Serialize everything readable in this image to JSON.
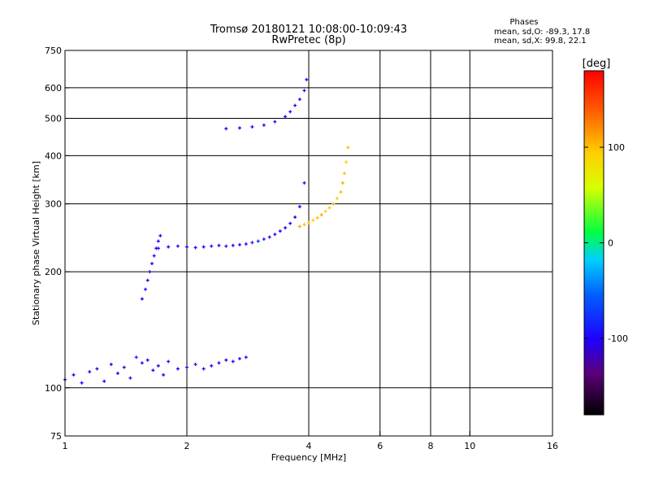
{
  "chart_data": {
    "type": "scatter",
    "title": "Tromsø 20180121 10:08:00-10:09:43",
    "subtitle": "RwPretec (8p)",
    "stats": {
      "heading": "Phases",
      "line1": "mean, sd,O: -89.3, 17.8",
      "line2": "mean, sd,X:  99.8, 22.1"
    },
    "xlabel": "Frequency [MHz]",
    "ylabel": "Stationary phase Virtual Height [km]",
    "xscale": "log",
    "yscale": "log",
    "xlim": [
      1,
      16
    ],
    "ylim": [
      75,
      750
    ],
    "xticks": [
      1,
      2,
      4,
      6,
      8,
      10,
      16
    ],
    "yticks": [
      75,
      100,
      200,
      300,
      400,
      500,
      600,
      750
    ],
    "grid": true,
    "colorbar": {
      "label": "[deg]",
      "range": [
        -180,
        180
      ],
      "ticks": [
        -100,
        0,
        100
      ],
      "colormap": "rainbow"
    },
    "series": [
      {
        "x": [
          1.0,
          1.05,
          1.1,
          1.15,
          1.2,
          1.25,
          1.3,
          1.35,
          1.4,
          1.45,
          1.5,
          1.55,
          1.6,
          1.65,
          1.7,
          1.75,
          1.8,
          1.9,
          2.0,
          2.1,
          2.2,
          2.3,
          2.4,
          2.5,
          2.6,
          2.7,
          2.8
        ],
        "y": [
          105,
          108,
          103,
          110,
          112,
          104,
          115,
          109,
          113,
          106,
          120,
          116,
          118,
          111,
          114,
          108,
          117,
          112,
          113,
          115,
          112,
          114,
          116,
          118,
          117,
          119,
          120
        ],
        "phase": [
          -100,
          -105,
          -95,
          -100,
          -110,
          -98,
          -102,
          -96,
          -108,
          -100,
          -90,
          -104,
          -100,
          -95,
          -110,
          -100,
          -92,
          -100,
          -105,
          -98,
          -100,
          -95,
          -102,
          -100,
          -96,
          -100,
          -98
        ]
      },
      {
        "x": [
          1.55,
          1.58,
          1.6,
          1.62,
          1.64,
          1.66,
          1.68,
          1.7,
          1.72
        ],
        "y": [
          170,
          180,
          190,
          200,
          210,
          220,
          230,
          240,
          248
        ],
        "phase": [
          -100,
          -95,
          -105,
          -100,
          -98,
          -102,
          -100,
          -96,
          -100
        ]
      },
      {
        "x": [
          1.7,
          1.8,
          1.9,
          2.0,
          2.1,
          2.2,
          2.3,
          2.4,
          2.5,
          2.6,
          2.7,
          2.8,
          2.9,
          3.0,
          3.1,
          3.2,
          3.3,
          3.4,
          3.5,
          3.6,
          3.7,
          3.8,
          3.9
        ],
        "y": [
          230,
          232,
          233,
          232,
          231,
          232,
          233,
          234,
          233,
          234,
          235,
          236,
          238,
          240,
          243,
          246,
          250,
          255,
          260,
          267,
          277,
          295,
          340
        ],
        "phase": [
          -100,
          -100,
          -98,
          -100,
          -102,
          -100,
          -95,
          -100,
          -98,
          -100,
          -96,
          -100,
          -90,
          -80,
          -90,
          -100,
          -105,
          -110,
          -105,
          -100,
          -100,
          -100,
          -100
        ]
      },
      {
        "x": [
          2.5,
          2.7,
          2.9,
          3.1,
          3.3,
          3.5,
          3.6,
          3.7,
          3.8,
          3.9,
          3.95
        ],
        "y": [
          470,
          472,
          475,
          480,
          490,
          505,
          520,
          540,
          560,
          590,
          630
        ],
        "phase": [
          -100,
          -100,
          -98,
          -102,
          -100,
          -105,
          -100,
          -110,
          -100,
          -95,
          -100
        ]
      },
      {
        "x": [
          3.8,
          3.9,
          4.0,
          4.1,
          4.2,
          4.3,
          4.4,
          4.5,
          4.6,
          4.7,
          4.8,
          4.85,
          4.9,
          4.95,
          5.0
        ],
        "y": [
          262,
          265,
          268,
          272,
          276,
          281,
          287,
          293,
          300,
          310,
          322,
          340,
          360,
          385,
          420
        ],
        "phase": [
          110,
          100,
          105,
          95,
          100,
          110,
          90,
          100,
          105,
          95,
          100,
          110,
          100,
          95,
          100
        ]
      }
    ]
  }
}
